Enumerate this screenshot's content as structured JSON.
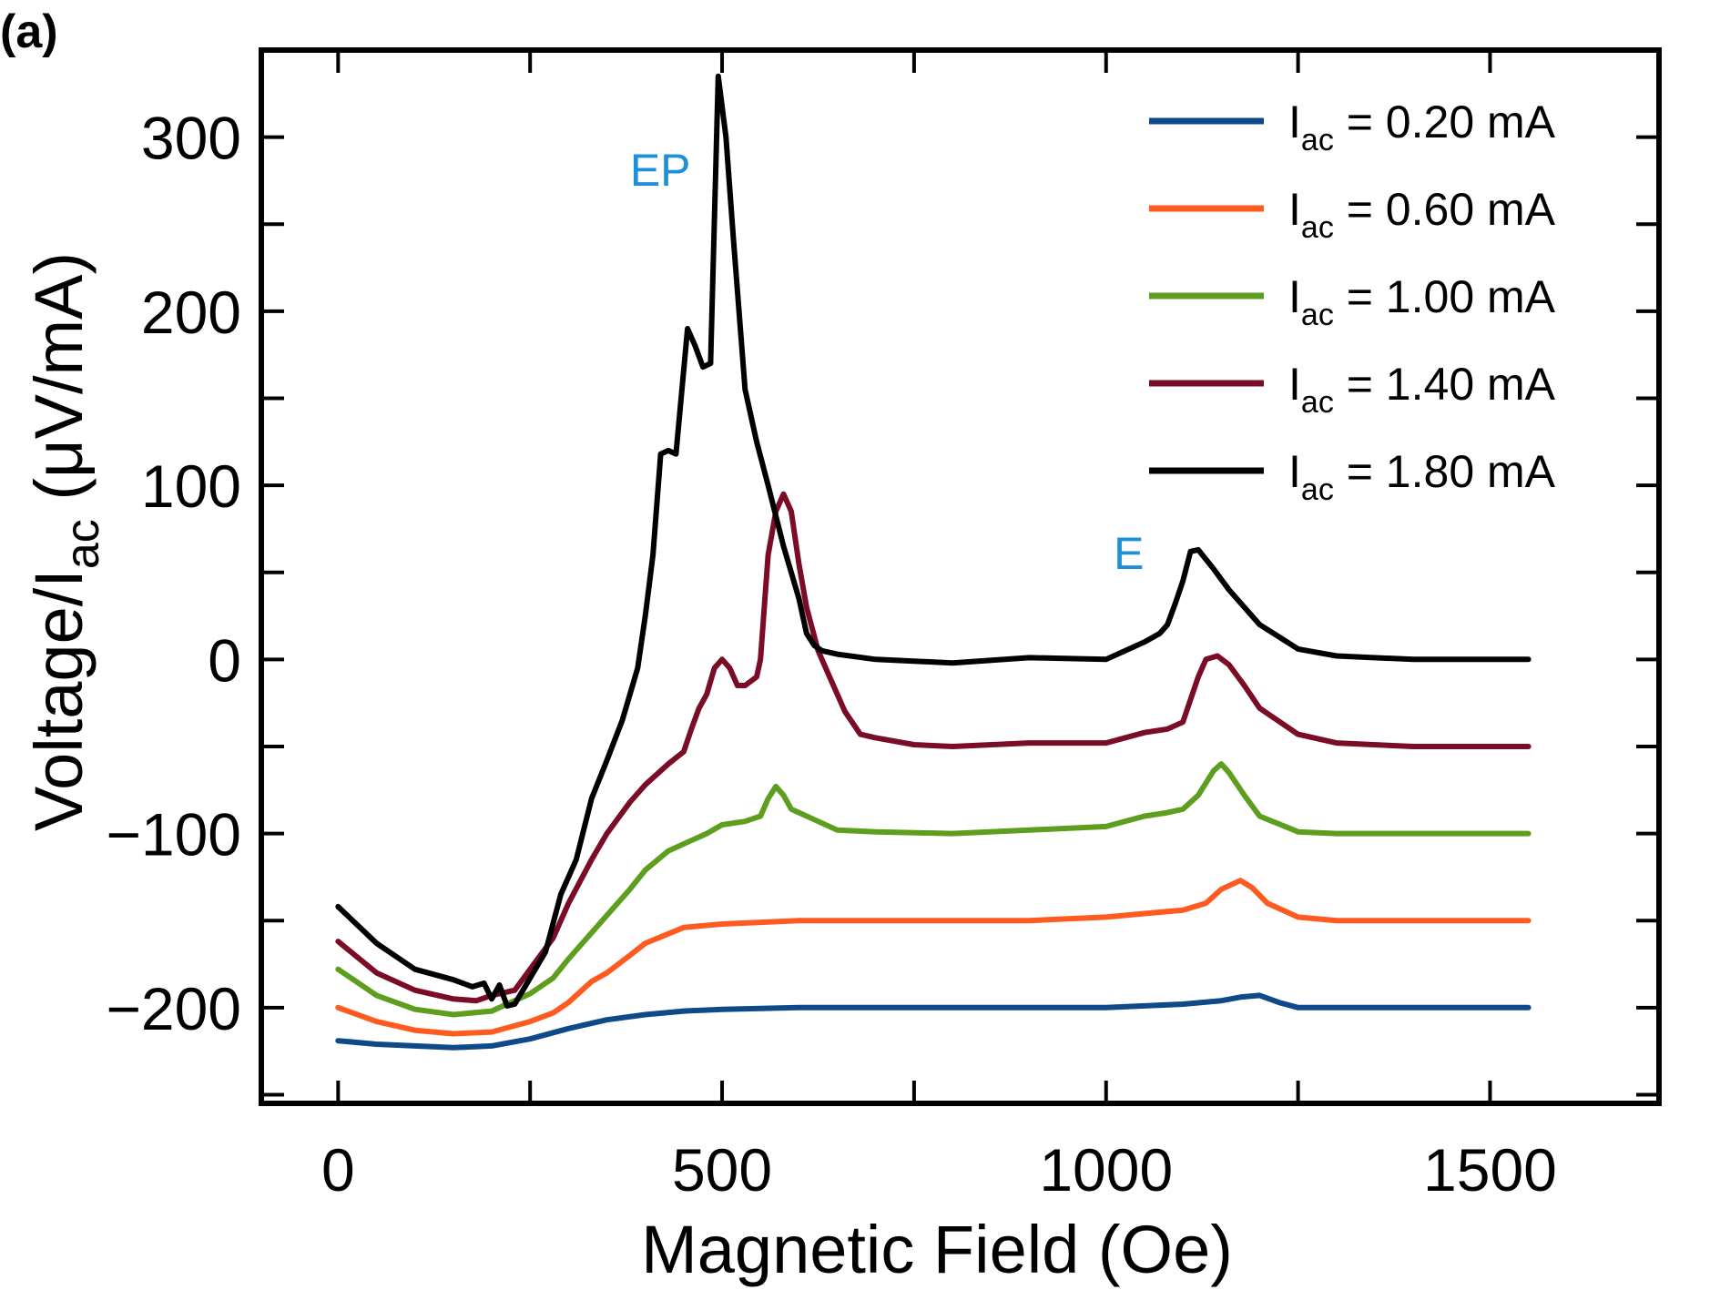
{
  "chart_data": {
    "type": "line",
    "panel_label": "(a)",
    "xlabel": "Magnetic Field (Oe)",
    "ylabel_main": "Voltage/I",
    "ylabel_sub": "ac",
    "ylabel_unit": " (μV/mA)",
    "xlim": [
      -100,
      1720
    ],
    "ylim": [
      -255,
      350
    ],
    "xticks": [
      0,
      500,
      1000,
      1500
    ],
    "xtick_labels": [
      "0",
      "500",
      "1000",
      "1500"
    ],
    "x_minor_ticks": [
      0,
      250,
      500,
      750,
      1000,
      1250,
      1500
    ],
    "yticks": [
      -200,
      -100,
      0,
      100,
      200,
      300
    ],
    "ytick_labels": [
      "−200",
      "−100",
      "0",
      "100",
      "200",
      "300"
    ],
    "y_minor_ticks": [
      -250,
      -200,
      -150,
      -100,
      -50,
      0,
      50,
      100,
      150,
      200,
      250,
      300
    ],
    "annotations": [
      {
        "text": "EP",
        "x": 380,
        "y": 272,
        "color": "#1E90D8"
      },
      {
        "text": "E",
        "x": 1010,
        "y": 52,
        "color": "#1E90D8"
      }
    ],
    "legend": {
      "position": "top-right",
      "prefix": "I",
      "sub": "ac",
      "entries": [
        " = 0.20 mA",
        " = 0.60 mA",
        " = 1.00 mA",
        " = 1.40 mA",
        " = 1.80 mA"
      ]
    },
    "series": [
      {
        "name": "Iac = 0.20 mA",
        "color": "#0E4A8A",
        "points": [
          [
            0,
            -219
          ],
          [
            50,
            -221
          ],
          [
            100,
            -222
          ],
          [
            150,
            -223
          ],
          [
            200,
            -222
          ],
          [
            250,
            -218
          ],
          [
            300,
            -212
          ],
          [
            350,
            -207
          ],
          [
            400,
            -204
          ],
          [
            450,
            -202
          ],
          [
            500,
            -201
          ],
          [
            600,
            -200
          ],
          [
            700,
            -200
          ],
          [
            800,
            -200
          ],
          [
            900,
            -200
          ],
          [
            1000,
            -200
          ],
          [
            1100,
            -198
          ],
          [
            1150,
            -196
          ],
          [
            1175,
            -194
          ],
          [
            1200,
            -193
          ],
          [
            1225,
            -197
          ],
          [
            1250,
            -200
          ],
          [
            1300,
            -200
          ],
          [
            1400,
            -200
          ],
          [
            1500,
            -200
          ],
          [
            1550,
            -200
          ]
        ]
      },
      {
        "name": "Iac = 0.60 mA",
        "color": "#FF5A1F",
        "points": [
          [
            0,
            -200
          ],
          [
            50,
            -208
          ],
          [
            100,
            -213
          ],
          [
            150,
            -215
          ],
          [
            200,
            -214
          ],
          [
            250,
            -208
          ],
          [
            280,
            -203
          ],
          [
            300,
            -197
          ],
          [
            330,
            -185
          ],
          [
            350,
            -180
          ],
          [
            380,
            -170
          ],
          [
            400,
            -163
          ],
          [
            450,
            -154
          ],
          [
            500,
            -152
          ],
          [
            550,
            -151
          ],
          [
            600,
            -150
          ],
          [
            700,
            -150
          ],
          [
            800,
            -150
          ],
          [
            900,
            -150
          ],
          [
            1000,
            -148
          ],
          [
            1050,
            -146
          ],
          [
            1100,
            -144
          ],
          [
            1130,
            -140
          ],
          [
            1150,
            -132
          ],
          [
            1175,
            -127
          ],
          [
            1190,
            -131
          ],
          [
            1210,
            -140
          ],
          [
            1250,
            -148
          ],
          [
            1300,
            -150
          ],
          [
            1400,
            -150
          ],
          [
            1550,
            -150
          ]
        ]
      },
      {
        "name": "Iac = 1.00 mA",
        "color": "#5E9E1E",
        "points": [
          [
            0,
            -178
          ],
          [
            50,
            -193
          ],
          [
            100,
            -201
          ],
          [
            150,
            -204
          ],
          [
            200,
            -202
          ],
          [
            250,
            -192
          ],
          [
            280,
            -183
          ],
          [
            300,
            -172
          ],
          [
            330,
            -157
          ],
          [
            350,
            -147
          ],
          [
            380,
            -132
          ],
          [
            400,
            -121
          ],
          [
            430,
            -110
          ],
          [
            460,
            -104
          ],
          [
            480,
            -100
          ],
          [
            500,
            -95
          ],
          [
            530,
            -93
          ],
          [
            550,
            -90
          ],
          [
            560,
            -80
          ],
          [
            570,
            -73
          ],
          [
            580,
            -78
          ],
          [
            590,
            -86
          ],
          [
            600,
            -88
          ],
          [
            620,
            -92
          ],
          [
            650,
            -98
          ],
          [
            700,
            -99
          ],
          [
            800,
            -100
          ],
          [
            900,
            -98
          ],
          [
            1000,
            -96
          ],
          [
            1050,
            -90
          ],
          [
            1080,
            -88
          ],
          [
            1100,
            -86
          ],
          [
            1120,
            -78
          ],
          [
            1140,
            -64
          ],
          [
            1150,
            -60
          ],
          [
            1160,
            -65
          ],
          [
            1180,
            -78
          ],
          [
            1200,
            -90
          ],
          [
            1250,
            -99
          ],
          [
            1300,
            -100
          ],
          [
            1400,
            -100
          ],
          [
            1550,
            -100
          ]
        ]
      },
      {
        "name": "Iac = 1.40 mA",
        "color": "#7A0C26",
        "points": [
          [
            0,
            -162
          ],
          [
            50,
            -180
          ],
          [
            100,
            -190
          ],
          [
            150,
            -195
          ],
          [
            180,
            -196
          ],
          [
            200,
            -193
          ],
          [
            230,
            -190
          ],
          [
            250,
            -178
          ],
          [
            280,
            -160
          ],
          [
            300,
            -140
          ],
          [
            330,
            -115
          ],
          [
            350,
            -100
          ],
          [
            380,
            -82
          ],
          [
            400,
            -72
          ],
          [
            430,
            -60
          ],
          [
            450,
            -53
          ],
          [
            460,
            -40
          ],
          [
            470,
            -28
          ],
          [
            480,
            -20
          ],
          [
            490,
            -5
          ],
          [
            500,
            0
          ],
          [
            510,
            -5
          ],
          [
            520,
            -15
          ],
          [
            530,
            -15
          ],
          [
            545,
            -10
          ],
          [
            550,
            0
          ],
          [
            560,
            60
          ],
          [
            570,
            85
          ],
          [
            580,
            95
          ],
          [
            590,
            85
          ],
          [
            600,
            55
          ],
          [
            610,
            30
          ],
          [
            625,
            5
          ],
          [
            640,
            -10
          ],
          [
            660,
            -30
          ],
          [
            680,
            -43
          ],
          [
            700,
            -45
          ],
          [
            750,
            -49
          ],
          [
            800,
            -50
          ],
          [
            900,
            -48
          ],
          [
            1000,
            -48
          ],
          [
            1050,
            -42
          ],
          [
            1080,
            -40
          ],
          [
            1100,
            -36
          ],
          [
            1120,
            -10
          ],
          [
            1130,
            0
          ],
          [
            1145,
            2
          ],
          [
            1160,
            -3
          ],
          [
            1180,
            -15
          ],
          [
            1200,
            -28
          ],
          [
            1250,
            -43
          ],
          [
            1300,
            -48
          ],
          [
            1400,
            -50
          ],
          [
            1550,
            -50
          ]
        ]
      },
      {
        "name": "Iac = 1.80 mA",
        "color": "#000000",
        "points": [
          [
            0,
            -142
          ],
          [
            50,
            -163
          ],
          [
            100,
            -178
          ],
          [
            150,
            -184
          ],
          [
            175,
            -188
          ],
          [
            190,
            -186
          ],
          [
            200,
            -195
          ],
          [
            210,
            -187
          ],
          [
            220,
            -199
          ],
          [
            230,
            -198
          ],
          [
            250,
            -183
          ],
          [
            270,
            -168
          ],
          [
            290,
            -135
          ],
          [
            310,
            -115
          ],
          [
            330,
            -80
          ],
          [
            350,
            -58
          ],
          [
            370,
            -35
          ],
          [
            390,
            -5
          ],
          [
            400,
            25
          ],
          [
            410,
            60
          ],
          [
            420,
            118
          ],
          [
            430,
            120
          ],
          [
            440,
            118
          ],
          [
            455,
            190
          ],
          [
            465,
            180
          ],
          [
            475,
            168
          ],
          [
            485,
            170
          ],
          [
            495,
            335
          ],
          [
            505,
            300
          ],
          [
            515,
            240
          ],
          [
            530,
            155
          ],
          [
            545,
            125
          ],
          [
            560,
            100
          ],
          [
            580,
            65
          ],
          [
            600,
            35
          ],
          [
            610,
            15
          ],
          [
            620,
            8
          ],
          [
            630,
            5
          ],
          [
            650,
            3
          ],
          [
            700,
            0
          ],
          [
            800,
            -2
          ],
          [
            900,
            1
          ],
          [
            1000,
            0
          ],
          [
            1050,
            10
          ],
          [
            1070,
            15
          ],
          [
            1080,
            20
          ],
          [
            1090,
            32
          ],
          [
            1100,
            45
          ],
          [
            1110,
            62
          ],
          [
            1120,
            63
          ],
          [
            1140,
            52
          ],
          [
            1160,
            40
          ],
          [
            1200,
            20
          ],
          [
            1250,
            6
          ],
          [
            1300,
            2
          ],
          [
            1400,
            0
          ],
          [
            1550,
            0
          ]
        ]
      }
    ]
  }
}
